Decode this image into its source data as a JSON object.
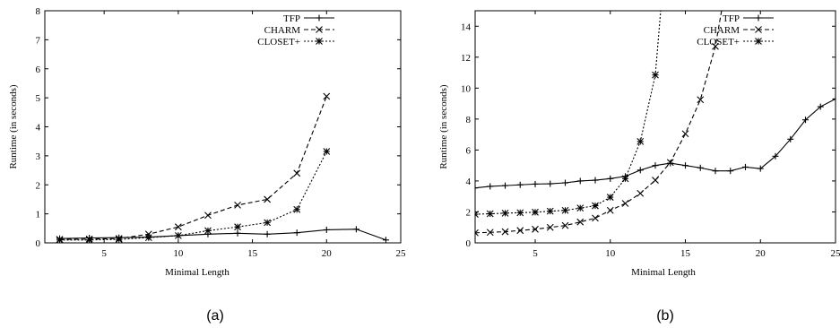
{
  "chart_data": [
    {
      "type": "line",
      "caption": "(a)",
      "xlabel": "Minimal Length",
      "ylabel": "Runtime (in seconds)",
      "xlim": [
        1,
        25
      ],
      "ylim": [
        0,
        8
      ],
      "xticks": [
        5,
        10,
        15,
        20,
        25
      ],
      "yticks": [
        0,
        1,
        2,
        3,
        4,
        5,
        6,
        7,
        8
      ],
      "legend_position": "top-right",
      "series": [
        {
          "name": "TFP",
          "marker": "plus",
          "dash": "solid",
          "x": [
            2,
            4,
            6,
            8,
            10,
            12,
            14,
            16,
            18,
            20,
            22,
            24
          ],
          "y": [
            0.15,
            0.17,
            0.18,
            0.2,
            0.25,
            0.3,
            0.33,
            0.3,
            0.35,
            0.45,
            0.47,
            0.1
          ]
        },
        {
          "name": "CHARM",
          "marker": "cross",
          "dash": "dashed",
          "x": [
            2,
            4,
            6,
            8,
            10,
            12,
            14,
            16,
            18,
            20
          ],
          "y": [
            0.12,
            0.13,
            0.15,
            0.3,
            0.55,
            0.95,
            1.3,
            1.5,
            2.4,
            5.05
          ]
        },
        {
          "name": "CLOSET+",
          "marker": "star",
          "dash": "dotted",
          "x": [
            2,
            4,
            6,
            8,
            10,
            12,
            14,
            16,
            18,
            20
          ],
          "y": [
            0.1,
            0.1,
            0.12,
            0.18,
            0.25,
            0.42,
            0.55,
            0.7,
            1.15,
            3.15
          ]
        }
      ]
    },
    {
      "type": "line",
      "caption": "(b)",
      "xlabel": "Minimal Length",
      "ylabel": "Runtime (in seconds)",
      "xlim": [
        1,
        25
      ],
      "ylim": [
        0,
        15
      ],
      "xticks": [
        5,
        10,
        15,
        20,
        25
      ],
      "yticks": [
        0,
        2,
        4,
        6,
        8,
        10,
        12,
        14
      ],
      "legend_position": "top-right",
      "series": [
        {
          "name": "TFP",
          "marker": "plus",
          "dash": "solid",
          "x": [
            1,
            2,
            3,
            4,
            5,
            6,
            7,
            8,
            9,
            10,
            11,
            12,
            13,
            14,
            15,
            16,
            17,
            18,
            19,
            20,
            21,
            22,
            23,
            24,
            25
          ],
          "y": [
            3.55,
            3.65,
            3.7,
            3.75,
            3.8,
            3.82,
            3.88,
            4.0,
            4.05,
            4.15,
            4.3,
            4.7,
            5.0,
            5.15,
            5.0,
            4.85,
            4.65,
            4.65,
            4.9,
            4.8,
            5.6,
            6.7,
            7.95,
            8.8,
            9.3
          ]
        },
        {
          "name": "CHARM",
          "marker": "cross",
          "dash": "dashed",
          "x": [
            1,
            2,
            3,
            4,
            5,
            6,
            7,
            8,
            9,
            10,
            11,
            12,
            13,
            14,
            15,
            16,
            17,
            17.5
          ],
          "y": [
            0.65,
            0.68,
            0.72,
            0.8,
            0.88,
            1.0,
            1.12,
            1.35,
            1.6,
            2.1,
            2.55,
            3.2,
            4.05,
            5.2,
            7.05,
            9.25,
            12.7,
            15.5
          ]
        },
        {
          "name": "CLOSET+",
          "marker": "star",
          "dash": "dotted",
          "x": [
            1,
            2,
            3,
            4,
            5,
            6,
            7,
            8,
            9,
            10,
            11,
            12,
            13,
            13.4
          ],
          "y": [
            1.85,
            1.88,
            1.92,
            1.95,
            1.98,
            2.05,
            2.1,
            2.25,
            2.4,
            2.95,
            4.15,
            6.55,
            10.85,
            15.5
          ]
        }
      ]
    }
  ]
}
